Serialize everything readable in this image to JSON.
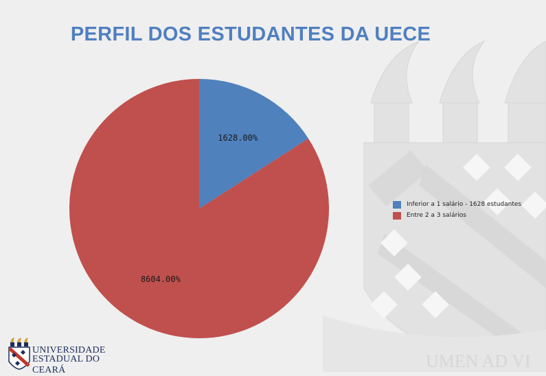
{
  "title": "PERFIL DOS ESTUDANTES DA UECE",
  "chart_data": {
    "type": "pie",
    "title": "PERFIL DOS ESTUDANTES DA UECE",
    "categories": [
      "Inferior a 1 salário - 1628 estudantes",
      "Entre 2 a 3 salários"
    ],
    "values": [
      1628,
      8604
    ],
    "data_labels": [
      "1628.00%",
      "8604.00%"
    ],
    "colors": [
      "#4f81bd",
      "#c0504d"
    ],
    "legend_position": "right"
  },
  "legend": {
    "items": [
      {
        "label": "Inferior a 1 salário - 1628 estudantes",
        "color": "#4f81bd"
      },
      {
        "label": "Entre 2 a 3 salários",
        "color": "#c0504d"
      }
    ]
  },
  "logo": {
    "line1": "UNIVERSIDADE",
    "line2": "ESTADUAL DO CEARÁ"
  },
  "watermark": {
    "motto": "UMEN AD VI"
  }
}
